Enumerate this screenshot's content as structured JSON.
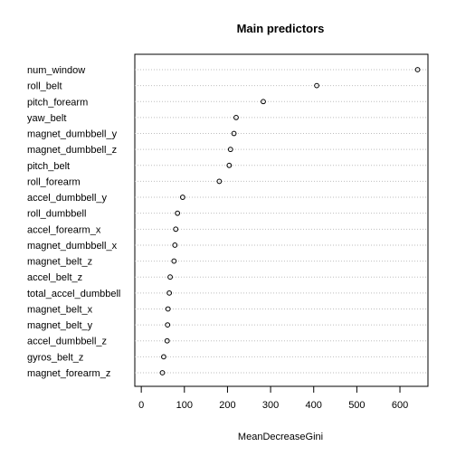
{
  "chart_data": {
    "type": "dotchart",
    "title": "Main predictors",
    "xlabel": "MeanDecreaseGini",
    "ylabel": "",
    "xlim": [
      -15,
      665
    ],
    "xticks": [
      0,
      100,
      200,
      300,
      400,
      500,
      600
    ],
    "grid": "dotted horizontal lines per category",
    "categories": [
      "num_window",
      "roll_belt",
      "pitch_forearm",
      "yaw_belt",
      "magnet_dumbbell_y",
      "magnet_dumbbell_z",
      "pitch_belt",
      "roll_forearm",
      "accel_dumbbell_y",
      "roll_dumbbell",
      "accel_forearm_x",
      "magnet_dumbbell_x",
      "magnet_belt_z",
      "accel_belt_z",
      "total_accel_dumbbell",
      "magnet_belt_x",
      "magnet_belt_y",
      "accel_dumbbell_z",
      "gyros_belt_z",
      "magnet_forearm_z"
    ],
    "values": [
      641,
      407,
      283,
      220,
      215,
      207,
      204,
      181,
      96,
      84,
      80,
      78,
      76,
      67,
      65,
      62,
      61,
      60,
      52,
      49
    ]
  }
}
